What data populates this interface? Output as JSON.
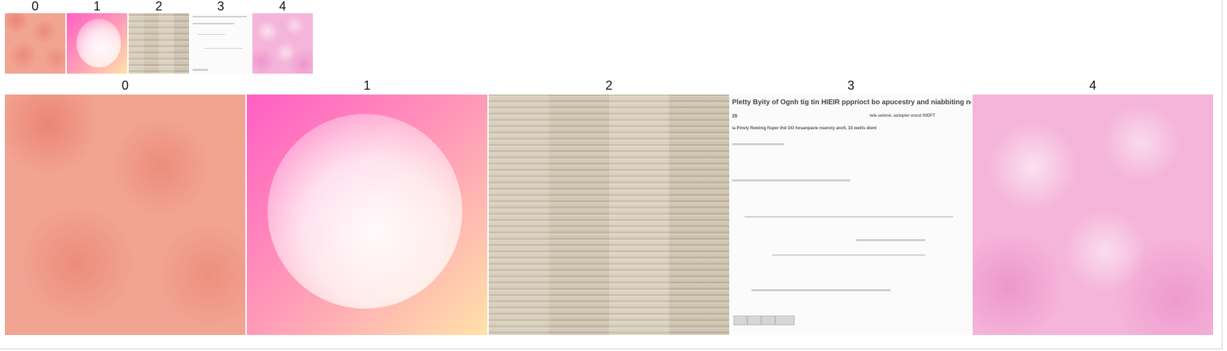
{
  "thumbnails": [
    {
      "index": "0"
    },
    {
      "index": "1"
    },
    {
      "index": "2"
    },
    {
      "index": "3"
    },
    {
      "index": "4"
    }
  ],
  "main": [
    {
      "index": "0"
    },
    {
      "index": "1"
    },
    {
      "index": "2"
    },
    {
      "index": "3"
    },
    {
      "index": "4"
    }
  ],
  "doc_image": {
    "title": "Pletty Byity of Ognh tig tin HIEIR ppprioct bo apucestry and niabbiting nd ectulicity",
    "sub_left": "26",
    "sub_right": "tele uelene. auteplel oncel 00DFT",
    "line": "ia Pinvly Rewinig fiuper thd OO hosanpavie nsenviy ancfi, 33 weilis dient"
  }
}
